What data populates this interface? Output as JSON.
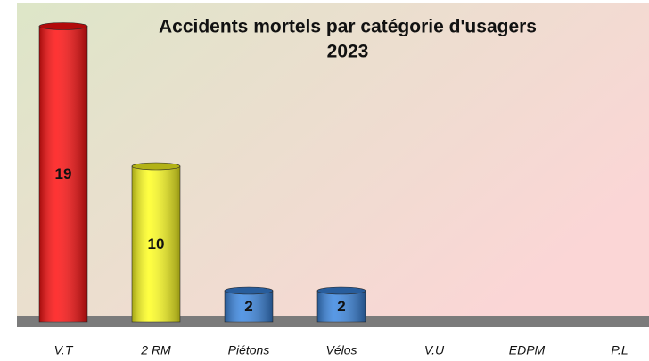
{
  "chart_data": {
    "type": "bar",
    "title": [
      "Accidents mortels par catégorie d'usagers",
      "2023"
    ],
    "categories": [
      "V.T",
      "2 RM",
      "Piétons",
      "Vélos",
      "V.U",
      "EDPM",
      "P.L"
    ],
    "values": [
      19,
      10,
      2,
      2,
      0,
      0,
      0
    ],
    "colors": [
      "#ff1010",
      "#ffff20",
      "#3a86e0",
      "#3a86e0",
      "#3a86e0",
      "#3a86e0",
      "#3a86e0"
    ],
    "ylim": [
      0,
      20
    ]
  }
}
